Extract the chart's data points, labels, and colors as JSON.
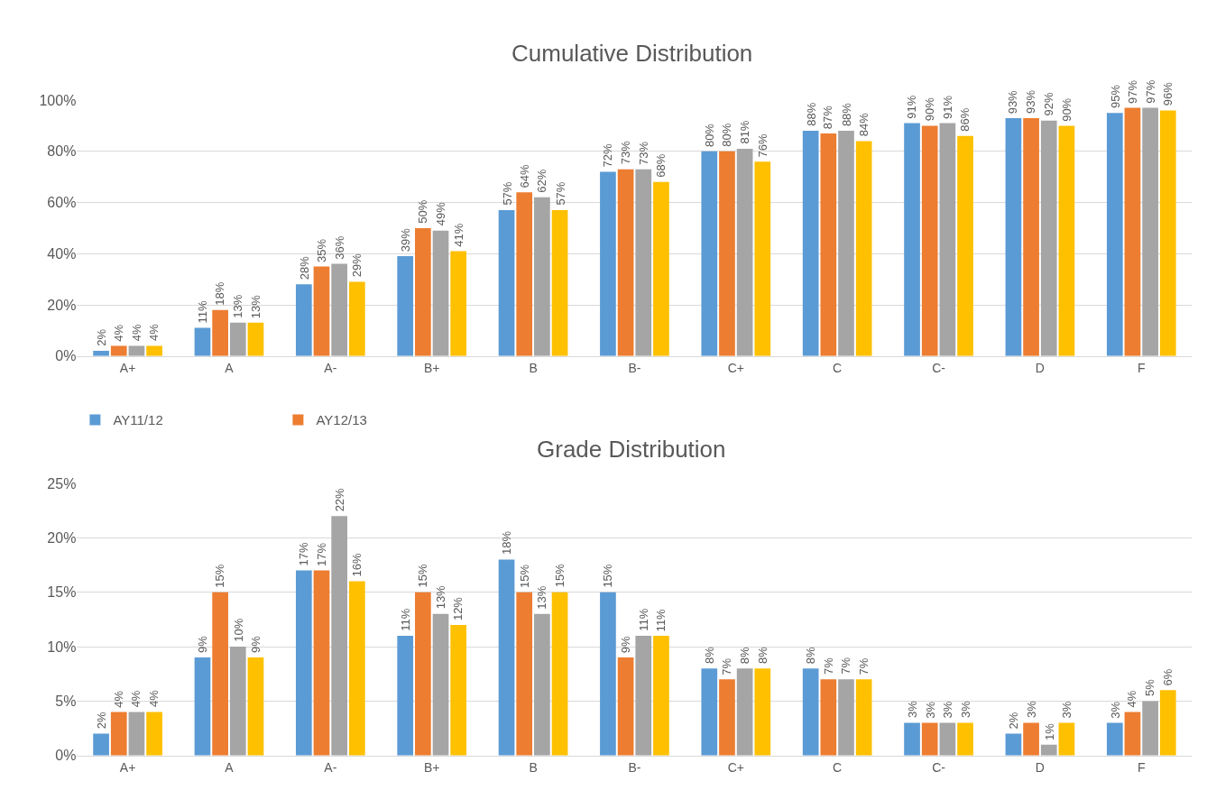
{
  "chart_data": [
    {
      "type": "bar",
      "title": "Cumulative Distribution",
      "categories": [
        "A+",
        "A",
        "A-",
        "B+",
        "B",
        "B-",
        "C+",
        "C",
        "C-",
        "D",
        "F"
      ],
      "series": [
        {
          "color": "#5b9bd5",
          "values": [
            2,
            11,
            28,
            39,
            57,
            72,
            80,
            88,
            91,
            93,
            95
          ],
          "value_labels": [
            "2%",
            "11%",
            "28%",
            "39%",
            "57%",
            "72%",
            "80%",
            "88%",
            "91%",
            "93%",
            "95%"
          ]
        },
        {
          "color": "#ed7d31",
          "values": [
            4,
            18,
            35,
            50,
            64,
            73,
            80,
            87,
            90,
            93,
            97
          ],
          "value_labels": [
            "4%",
            "18%",
            "35%",
            "50%",
            "64%",
            "73%",
            "80%",
            "87%",
            "90%",
            "93%",
            "97%"
          ]
        },
        {
          "color": "#a5a5a5",
          "values": [
            4,
            13,
            36,
            49,
            62,
            73,
            81,
            88,
            91,
            92,
            97
          ],
          "value_labels": [
            "4%",
            "13%",
            "36%",
            "49%",
            "62%",
            "73%",
            "81%",
            "88%",
            "91%",
            "92%",
            "97%"
          ]
        },
        {
          "color": "#ffc000",
          "values": [
            4,
            13,
            29,
            41,
            57,
            68,
            76,
            84,
            86,
            90,
            96
          ],
          "value_labels": [
            "4%",
            "13%",
            "29%",
            "41%",
            "57%",
            "68%",
            "76%",
            "84%",
            "86%",
            "90%",
            "96%"
          ]
        }
      ],
      "ylim": [
        0,
        100
      ],
      "yticks": [
        {
          "value": 0,
          "label": "0%"
        },
        {
          "value": 20,
          "label": "20%"
        },
        {
          "value": 40,
          "label": "40%"
        },
        {
          "value": 60,
          "label": "60%"
        },
        {
          "value": 80,
          "label": "80%"
        },
        {
          "value": 100,
          "label": "100%"
        }
      ],
      "grid": "y",
      "legend": false
    },
    {
      "type": "bar",
      "title": "Grade Distribution",
      "categories": [
        "A+",
        "A",
        "A-",
        "B+",
        "B",
        "B-",
        "C+",
        "C",
        "C-",
        "D",
        "F"
      ],
      "series": [
        {
          "name": "AY11/12",
          "color": "#5b9bd5",
          "values": [
            2,
            9,
            17,
            11,
            18,
            15,
            8,
            8,
            3,
            2,
            3
          ],
          "value_labels": [
            "2%",
            "9%",
            "17%",
            "11%",
            "18%",
            "15%",
            "8%",
            "8%",
            "3%",
            "2%",
            "3%"
          ]
        },
        {
          "name": "AY12/13",
          "color": "#ed7d31",
          "values": [
            4,
            15,
            17,
            15,
            15,
            9,
            7,
            7,
            3,
            3,
            4
          ],
          "value_labels": [
            "4%",
            "15%",
            "17%",
            "15%",
            "15%",
            "9%",
            "7%",
            "7%",
            "3%",
            "3%",
            "4%"
          ]
        },
        {
          "color": "#a5a5a5",
          "values": [
            4,
            10,
            22,
            13,
            13,
            11,
            8,
            7,
            3,
            1,
            5
          ],
          "value_labels": [
            "4%",
            "10%",
            "22%",
            "13%",
            "13%",
            "11%",
            "8%",
            "7%",
            "3%",
            "1%",
            "5%"
          ]
        },
        {
          "color": "#ffc000",
          "values": [
            4,
            9,
            16,
            12,
            15,
            11,
            8,
            7,
            3,
            3,
            6
          ],
          "value_labels": [
            "4%",
            "9%",
            "16%",
            "12%",
            "15%",
            "11%",
            "8%",
            "7%",
            "3%",
            "3%",
            "6%"
          ]
        }
      ],
      "ylim": [
        0,
        25
      ],
      "yticks": [
        {
          "value": 0,
          "label": "0%"
        },
        {
          "value": 5,
          "label": "5%"
        },
        {
          "value": 10,
          "label": "10%"
        },
        {
          "value": 15,
          "label": "15%"
        },
        {
          "value": 20,
          "label": "20%"
        },
        {
          "value": 25,
          "label": "25%"
        }
      ],
      "grid": "y",
      "legend": "top left"
    }
  ]
}
